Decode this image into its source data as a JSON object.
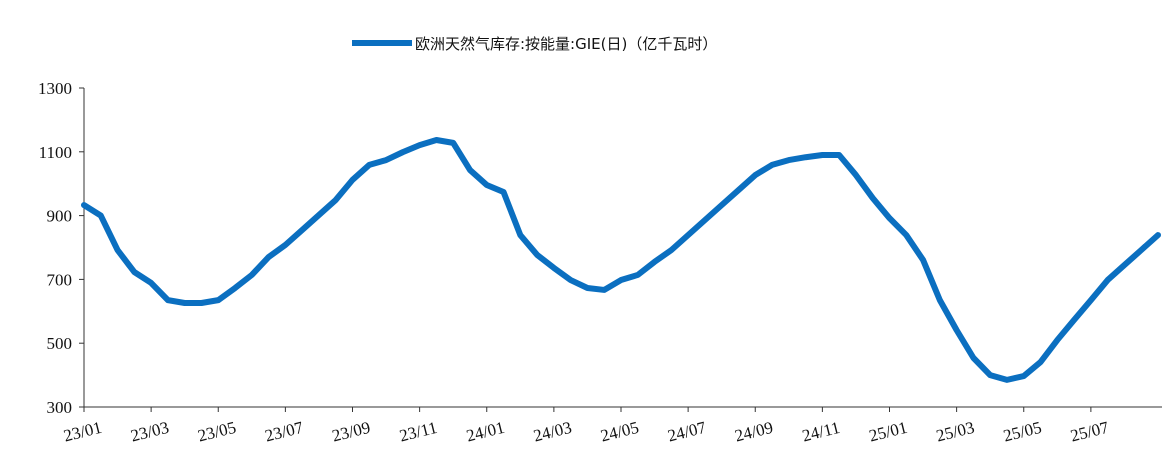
{
  "chart_data": {
    "type": "line",
    "categories": [
      "23/01",
      null,
      null,
      null,
      "23/03",
      null,
      null,
      null,
      "23/05",
      null,
      null,
      null,
      "23/07",
      null,
      null,
      null,
      "23/09",
      null,
      null,
      null,
      "23/11",
      null,
      null,
      null,
      "24/01",
      null,
      null,
      null,
      "24/03",
      null,
      null,
      null,
      "24/05",
      null,
      null,
      null,
      "24/07",
      null,
      null,
      null,
      "24/09",
      null,
      null,
      null,
      "24/11",
      null,
      null,
      null,
      "25/01",
      null,
      null,
      null,
      "25/03",
      null,
      null,
      null,
      "25/05",
      null,
      null,
      null,
      "25/07",
      null,
      null,
      null,
      null
    ],
    "series": [
      {
        "name": "欧洲天然气库存:按能量:GIE(日)（亿千瓦时）",
        "color": "#0b6fc0",
        "values": [
          933,
          900,
          792,
          723,
          689,
          635,
          626,
          626,
          635,
          673,
          714,
          770,
          808,
          855,
          902,
          949,
          1012,
          1059,
          1074,
          1099,
          1121,
          1137,
          1128,
          1043,
          996,
          974,
          839,
          777,
          736,
          698,
          673,
          667,
          698,
          714,
          755,
          792,
          839,
          886,
          933,
          980,
          1027,
          1059,
          1074,
          1083,
          1090,
          1090,
          1027,
          955,
          892,
          839,
          761,
          635,
          541,
          454,
          400,
          385,
          397,
          441,
          510,
          573,
          635,
          698,
          745,
          792,
          839
        ]
      }
    ],
    "ylim": [
      300,
      1300
    ],
    "yticks": [
      300,
      500,
      700,
      900,
      1100,
      1300
    ],
    "legend": "top"
  }
}
